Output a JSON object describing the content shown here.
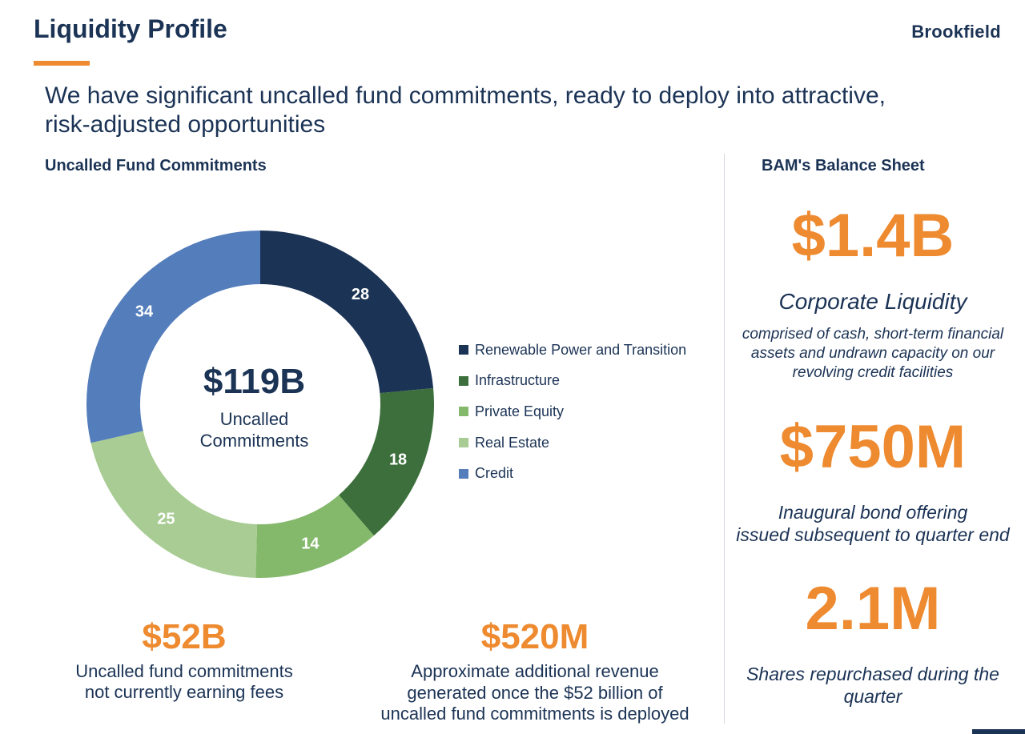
{
  "header": {
    "title": "Liquidity Profile",
    "brand": "Brookfield",
    "subtitle_line1": "We have significant uncalled fund commitments, ready to deploy into attractive,",
    "subtitle_line2": "risk-adjusted opportunities"
  },
  "left_section": {
    "heading": "Uncalled Fund Commitments",
    "center_value": "$119B",
    "center_label_line1": "Uncalled",
    "center_label_line2": "Commitments"
  },
  "chart_data": {
    "type": "pie",
    "donut": true,
    "categories": [
      "Renewable Power and Transition",
      "Infrastructure",
      "Private Equity",
      "Real Estate",
      "Credit"
    ],
    "values": [
      28,
      18,
      14,
      25,
      34
    ],
    "colors": [
      "#1b3355",
      "#3c6f3b",
      "#84b96c",
      "#a8cc93",
      "#547dbc"
    ],
    "data_labels": [
      "28",
      "18",
      "14",
      "25",
      "34"
    ],
    "legend_position": "right"
  },
  "stats": {
    "uncalled_value": "$52B",
    "uncalled_desc_line1": "Uncalled fund commitments",
    "uncalled_desc_line2": "not currently earning fees",
    "revenue_value": "$520M",
    "revenue_desc_line1": "Approximate additional revenue",
    "revenue_desc_line2": "generated once the $52 billion of",
    "revenue_desc_line3": "uncalled fund commitments is deployed"
  },
  "balance_sheet": {
    "heading": "BAM's Balance Sheet",
    "corporate_liquidity_value": "$1.4B",
    "corporate_liquidity_label": "Corporate Liquidity",
    "corporate_liquidity_desc_line1": "comprised of cash, short-term financial",
    "corporate_liquidity_desc_line2": "assets and undrawn capacity on our",
    "corporate_liquidity_desc_line3": "revolving credit facilities",
    "bond_value": "$750M",
    "bond_desc_line1": "Inaugural bond offering",
    "bond_desc_line2": "issued subsequent to quarter end",
    "shares_value": "2.1M",
    "shares_desc_line1": "Shares repurchased during the",
    "shares_desc_line2": "quarter"
  },
  "colors": {
    "navy": "#1b3355",
    "accent_orange": "#ee8a2f"
  }
}
